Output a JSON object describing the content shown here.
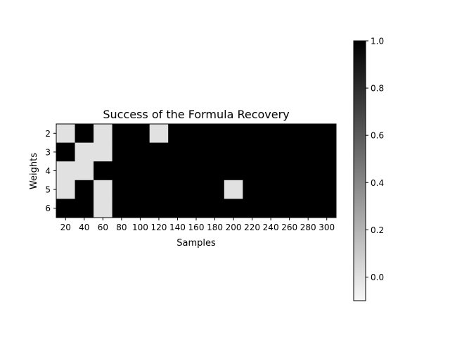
{
  "chart_data": {
    "type": "heatmap",
    "title": "Success of the Formula Recovery",
    "xlabel": "Samples",
    "ylabel": "Weights",
    "x": [
      20,
      40,
      60,
      80,
      100,
      120,
      140,
      160,
      180,
      200,
      220,
      240,
      260,
      280,
      300
    ],
    "y": [
      2,
      3,
      4,
      5,
      6
    ],
    "values": [
      [
        0,
        1,
        0,
        1,
        1,
        0,
        1,
        1,
        1,
        1,
        1,
        1,
        1,
        1,
        1
      ],
      [
        1,
        0,
        0,
        1,
        1,
        1,
        1,
        1,
        1,
        1,
        1,
        1,
        1,
        1,
        1
      ],
      [
        0,
        0,
        1,
        1,
        1,
        1,
        1,
        1,
        1,
        1,
        1,
        1,
        1,
        1,
        1
      ],
      [
        0,
        1,
        0,
        1,
        1,
        1,
        1,
        1,
        1,
        0,
        1,
        1,
        1,
        1,
        1
      ],
      [
        1,
        1,
        0,
        1,
        1,
        1,
        1,
        1,
        1,
        1,
        1,
        1,
        1,
        1,
        1
      ]
    ],
    "colormap": {
      "low_color": "#f7f7f7",
      "high_color": "#000000"
    },
    "colorbar": {
      "range": [
        -0.1,
        1.0
      ],
      "ticks": [
        0.0,
        0.2,
        0.4,
        0.6,
        0.8,
        1.0
      ],
      "tick_labels": [
        "0.0",
        "0.2",
        "0.4",
        "0.6",
        "0.8",
        "1.0"
      ]
    },
    "grid": false,
    "legend": "colorbar-right"
  }
}
